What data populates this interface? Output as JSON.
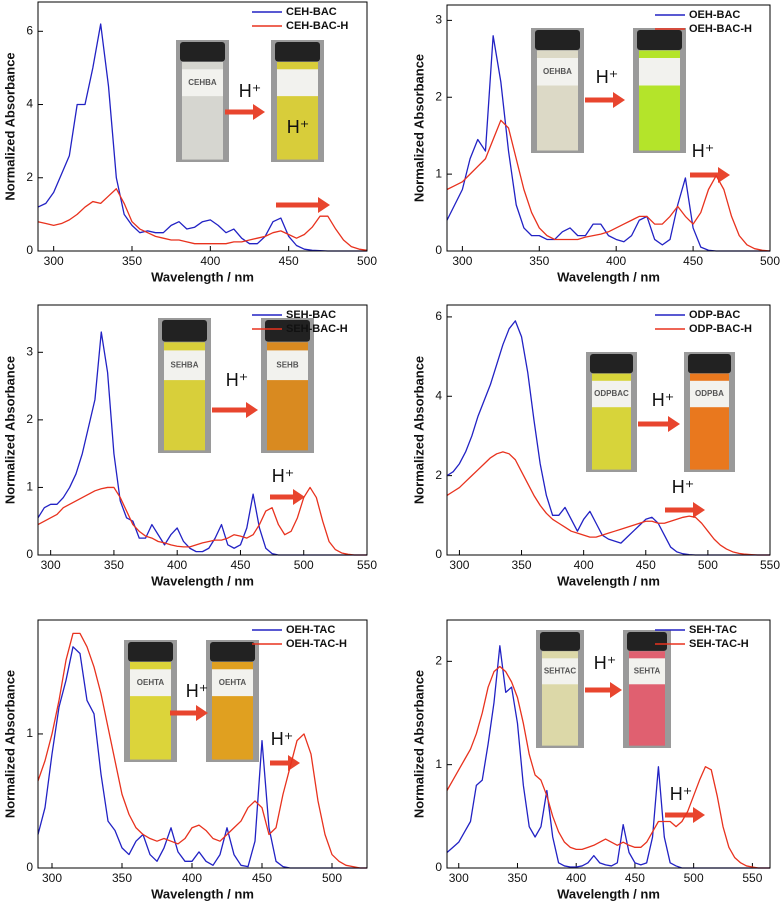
{
  "chart_data": [
    {
      "type": "line",
      "x_label": "Wavelength / nm",
      "y_label": "Normalized Absorbance",
      "legend": "upper right",
      "xlim": [
        290,
        500
      ],
      "xticks": [
        300,
        350,
        400,
        450,
        500
      ],
      "ylim": [
        0,
        6.8
      ],
      "yticks": [
        0,
        2,
        4,
        6
      ],
      "annotations": [
        "H⁺",
        "H⁺"
      ],
      "vial_labels": [
        "CEHBA"
      ],
      "x": [
        290,
        295,
        300,
        305,
        310,
        315,
        320,
        325,
        330,
        335,
        340,
        345,
        350,
        355,
        360,
        365,
        370,
        375,
        380,
        385,
        390,
        395,
        400,
        405,
        410,
        415,
        420,
        425,
        430,
        435,
        440,
        445,
        450,
        455,
        460,
        465,
        470,
        475,
        480,
        485,
        490,
        495,
        500
      ],
      "series": [
        {
          "name": "CEH-BAC",
          "color": "#2222c4",
          "values": [
            1.2,
            1.3,
            1.6,
            2.1,
            2.6,
            4.0,
            4.0,
            5.0,
            6.2,
            4.5,
            2.0,
            1.0,
            0.7,
            0.5,
            0.55,
            0.5,
            0.5,
            0.7,
            0.8,
            0.6,
            0.65,
            0.8,
            0.85,
            0.7,
            0.5,
            0.6,
            0.35,
            0.2,
            0.2,
            0.4,
            0.8,
            0.9,
            0.4,
            0.15,
            0.05,
            0.02,
            0.01,
            0,
            0,
            0,
            0,
            0,
            0
          ]
        },
        {
          "name": "CEH-BAC-H",
          "color": "#e8321e",
          "values": [
            0.8,
            0.75,
            0.7,
            0.75,
            0.85,
            1.0,
            1.2,
            1.35,
            1.3,
            1.5,
            1.7,
            1.3,
            0.8,
            0.6,
            0.5,
            0.4,
            0.35,
            0.3,
            0.3,
            0.25,
            0.2,
            0.2,
            0.2,
            0.2,
            0.2,
            0.25,
            0.25,
            0.3,
            0.35,
            0.4,
            0.5,
            0.55,
            0.45,
            0.35,
            0.45,
            0.65,
            0.95,
            0.95,
            0.6,
            0.3,
            0.12,
            0.05,
            0.02
          ]
        }
      ]
    },
    {
      "type": "line",
      "x_label": "Wavelength / nm",
      "y_label": "Normalized Absorbance",
      "legend": "upper right",
      "xlim": [
        290,
        500
      ],
      "xticks": [
        300,
        350,
        400,
        450,
        500
      ],
      "ylim": [
        0,
        3.2
      ],
      "yticks": [
        0,
        1,
        2,
        3
      ],
      "annotations": [
        "H⁺",
        "H⁺"
      ],
      "vial_labels": [
        "OEHBA"
      ],
      "x": [
        290,
        295,
        300,
        305,
        310,
        315,
        320,
        325,
        330,
        335,
        340,
        345,
        350,
        355,
        360,
        365,
        370,
        375,
        380,
        385,
        390,
        395,
        400,
        405,
        410,
        415,
        420,
        425,
        430,
        435,
        440,
        445,
        450,
        455,
        460,
        465,
        470,
        475,
        480,
        485,
        490,
        495,
        500
      ],
      "series": [
        {
          "name": "OEH-BAC",
          "color": "#2222c4",
          "values": [
            0.4,
            0.6,
            0.8,
            1.2,
            1.45,
            1.3,
            2.8,
            2.2,
            1.3,
            0.6,
            0.3,
            0.2,
            0.2,
            0.15,
            0.15,
            0.25,
            0.3,
            0.2,
            0.2,
            0.35,
            0.35,
            0.2,
            0.15,
            0.12,
            0.2,
            0.4,
            0.45,
            0.15,
            0.08,
            0.15,
            0.6,
            0.95,
            0.3,
            0.05,
            0.01,
            0,
            0,
            0,
            0,
            0,
            0,
            0,
            0
          ]
        },
        {
          "name": "OEH-BAC-H",
          "color": "#e8321e",
          "values": [
            0.8,
            0.85,
            0.9,
            1.0,
            1.1,
            1.2,
            1.45,
            1.7,
            1.6,
            1.2,
            0.8,
            0.5,
            0.3,
            0.2,
            0.15,
            0.15,
            0.15,
            0.15,
            0.18,
            0.2,
            0.22,
            0.25,
            0.3,
            0.35,
            0.4,
            0.45,
            0.45,
            0.35,
            0.35,
            0.45,
            0.58,
            0.45,
            0.35,
            0.5,
            0.8,
            0.98,
            0.8,
            0.45,
            0.2,
            0.08,
            0.03,
            0.01,
            0
          ]
        }
      ]
    },
    {
      "type": "line",
      "x_label": "Wavelength / nm",
      "y_label": "Normalized Absorbance",
      "legend": "upper right",
      "xlim": [
        290,
        550
      ],
      "xticks": [
        300,
        350,
        400,
        450,
        500,
        550
      ],
      "ylim": [
        0,
        3.7
      ],
      "yticks": [
        0,
        1,
        2,
        3
      ],
      "annotations": [
        "H⁺",
        "H⁺"
      ],
      "vial_labels": [
        "SEHBA",
        "SEHB"
      ],
      "x": [
        290,
        295,
        300,
        305,
        310,
        315,
        320,
        325,
        330,
        335,
        340,
        345,
        350,
        355,
        360,
        365,
        370,
        375,
        380,
        385,
        390,
        395,
        400,
        405,
        410,
        415,
        420,
        425,
        430,
        435,
        440,
        445,
        450,
        455,
        460,
        465,
        470,
        475,
        480,
        485,
        490,
        495,
        500,
        505,
        510,
        515,
        520,
        525,
        530,
        535,
        540,
        545,
        550
      ],
      "series": [
        {
          "name": "SEH-BAC",
          "color": "#2222c4",
          "values": [
            0.55,
            0.7,
            0.75,
            0.75,
            0.85,
            1.0,
            1.2,
            1.5,
            1.9,
            2.3,
            3.3,
            2.7,
            1.5,
            0.8,
            0.55,
            0.5,
            0.25,
            0.25,
            0.45,
            0.3,
            0.15,
            0.3,
            0.4,
            0.2,
            0.1,
            0.05,
            0.05,
            0.1,
            0.25,
            0.45,
            0.15,
            0.1,
            0.15,
            0.4,
            0.9,
            0.4,
            0.1,
            0.02,
            0,
            0,
            0,
            0,
            0,
            0,
            0,
            0,
            0,
            0,
            0,
            0,
            0,
            0,
            0
          ]
        },
        {
          "name": "SEH-BAC-H",
          "color": "#e8321e",
          "values": [
            0.45,
            0.5,
            0.55,
            0.6,
            0.7,
            0.75,
            0.8,
            0.85,
            0.9,
            0.95,
            0.98,
            1.0,
            1.0,
            0.85,
            0.65,
            0.45,
            0.35,
            0.28,
            0.25,
            0.2,
            0.18,
            0.15,
            0.13,
            0.12,
            0.12,
            0.15,
            0.18,
            0.2,
            0.22,
            0.22,
            0.25,
            0.3,
            0.28,
            0.25,
            0.3,
            0.45,
            0.65,
            0.7,
            0.45,
            0.3,
            0.35,
            0.55,
            0.85,
            1.0,
            0.85,
            0.5,
            0.2,
            0.08,
            0.03,
            0.01,
            0,
            0,
            0
          ]
        }
      ]
    },
    {
      "type": "line",
      "x_label": "Wavelength / nm",
      "y_label": "Normalized Absorbance",
      "legend": "upper right",
      "xlim": [
        290,
        550
      ],
      "xticks": [
        300,
        350,
        400,
        450,
        500,
        550
      ],
      "ylim": [
        0,
        6.3
      ],
      "yticks": [
        0,
        2,
        4,
        6
      ],
      "annotations": [
        "H⁺",
        "H⁺"
      ],
      "vial_labels": [
        "ODPBAC",
        "ODPBA"
      ],
      "x": [
        290,
        295,
        300,
        305,
        310,
        315,
        320,
        325,
        330,
        335,
        340,
        345,
        350,
        355,
        360,
        365,
        370,
        375,
        380,
        385,
        390,
        395,
        400,
        405,
        410,
        415,
        420,
        425,
        430,
        435,
        440,
        445,
        450,
        455,
        460,
        465,
        470,
        475,
        480,
        485,
        490,
        495,
        500,
        505,
        510,
        515,
        520,
        525,
        530,
        535,
        540,
        545,
        550
      ],
      "series": [
        {
          "name": "ODP-BAC",
          "color": "#2222c4",
          "values": [
            2.0,
            2.1,
            2.3,
            2.6,
            3.0,
            3.5,
            3.9,
            4.3,
            4.8,
            5.3,
            5.7,
            5.9,
            5.5,
            4.6,
            3.4,
            2.3,
            1.5,
            1.0,
            1.0,
            1.2,
            0.9,
            0.6,
            0.9,
            1.1,
            0.8,
            0.5,
            0.4,
            0.35,
            0.3,
            0.45,
            0.6,
            0.75,
            0.9,
            0.95,
            0.8,
            0.5,
            0.2,
            0.08,
            0.03,
            0.01,
            0,
            0,
            0,
            0,
            0,
            0,
            0,
            0,
            0,
            0,
            0,
            0,
            0
          ]
        },
        {
          "name": "ODP-BAC-H",
          "color": "#e8321e",
          "values": [
            1.5,
            1.6,
            1.7,
            1.85,
            2.0,
            2.15,
            2.3,
            2.45,
            2.55,
            2.6,
            2.55,
            2.4,
            2.1,
            1.8,
            1.5,
            1.25,
            1.05,
            0.9,
            0.8,
            0.7,
            0.6,
            0.55,
            0.5,
            0.45,
            0.45,
            0.5,
            0.55,
            0.6,
            0.65,
            0.7,
            0.75,
            0.8,
            0.85,
            0.85,
            0.8,
            0.8,
            0.85,
            0.9,
            0.95,
            0.98,
            0.95,
            0.8,
            0.6,
            0.4,
            0.25,
            0.15,
            0.08,
            0.04,
            0.02,
            0.01,
            0,
            0,
            0
          ]
        }
      ]
    },
    {
      "type": "line",
      "x_label": "Wavelength / nm",
      "y_label": "Normalized Absorbance",
      "legend": "upper right",
      "xlim": [
        290,
        525
      ],
      "xticks": [
        300,
        350,
        400,
        450,
        500
      ],
      "ylim": [
        0,
        1.85
      ],
      "yticks": [
        0,
        1
      ],
      "annotations": [
        "H⁺",
        "H⁺"
      ],
      "vial_labels": [
        "OEHTA",
        "OEHTA"
      ],
      "x": [
        290,
        295,
        300,
        305,
        310,
        315,
        320,
        325,
        330,
        335,
        340,
        345,
        350,
        355,
        360,
        365,
        370,
        375,
        380,
        385,
        390,
        395,
        400,
        405,
        410,
        415,
        420,
        425,
        430,
        435,
        440,
        445,
        450,
        455,
        460,
        465,
        470,
        475,
        480,
        485,
        490,
        495,
        500,
        505,
        510,
        515,
        520,
        525
      ],
      "series": [
        {
          "name": "OEH-TAC",
          "color": "#2222c4",
          "values": [
            0.25,
            0.45,
            0.85,
            1.2,
            1.4,
            1.65,
            1.6,
            1.25,
            1.15,
            0.7,
            0.35,
            0.28,
            0.15,
            0.1,
            0.2,
            0.25,
            0.1,
            0.05,
            0.15,
            0.3,
            0.12,
            0.05,
            0.05,
            0.12,
            0.05,
            0.02,
            0.1,
            0.3,
            0.1,
            0.02,
            0.01,
            0.2,
            0.95,
            0.3,
            0.05,
            0.01,
            0,
            0,
            0,
            0,
            0,
            0,
            0,
            0,
            0,
            0,
            0,
            0
          ]
        },
        {
          "name": "OEH-TAC-H",
          "color": "#e8321e",
          "values": [
            0.65,
            0.8,
            1.0,
            1.25,
            1.55,
            1.75,
            1.75,
            1.65,
            1.5,
            1.3,
            1.05,
            0.8,
            0.55,
            0.4,
            0.3,
            0.25,
            0.22,
            0.2,
            0.22,
            0.2,
            0.18,
            0.22,
            0.3,
            0.32,
            0.28,
            0.22,
            0.2,
            0.25,
            0.3,
            0.35,
            0.45,
            0.5,
            0.45,
            0.25,
            0.3,
            0.55,
            0.75,
            0.95,
            1.0,
            0.85,
            0.5,
            0.25,
            0.1,
            0.05,
            0.02,
            0.01,
            0,
            0
          ]
        }
      ]
    },
    {
      "type": "line",
      "x_label": "Wavelength / nm",
      "y_label": "Normalized Absorbance",
      "legend": "upper right",
      "xlim": [
        290,
        565
      ],
      "xticks": [
        300,
        350,
        400,
        450,
        500,
        550
      ],
      "ylim": [
        0,
        2.4
      ],
      "yticks": [
        0,
        1,
        2
      ],
      "annotations": [
        "H⁺",
        "H⁺"
      ],
      "vial_labels": [
        "SEHTAC",
        "SEHTA"
      ],
      "x": [
        290,
        295,
        300,
        305,
        310,
        315,
        320,
        325,
        330,
        335,
        340,
        345,
        350,
        355,
        360,
        365,
        370,
        375,
        380,
        385,
        390,
        395,
        400,
        405,
        410,
        415,
        420,
        425,
        430,
        435,
        440,
        445,
        450,
        455,
        460,
        465,
        470,
        475,
        480,
        485,
        490,
        495,
        500,
        505,
        510,
        515,
        520,
        525,
        530,
        535,
        540,
        545,
        550,
        555,
        560,
        565
      ],
      "series": [
        {
          "name": "SEH-TAC",
          "color": "#2222c4",
          "values": [
            0.15,
            0.2,
            0.25,
            0.35,
            0.45,
            0.8,
            0.85,
            1.2,
            1.6,
            2.15,
            1.7,
            1.75,
            1.4,
            0.8,
            0.4,
            0.3,
            0.4,
            0.75,
            0.3,
            0.05,
            0.02,
            0.01,
            0.01,
            0.02,
            0.05,
            0.12,
            0.05,
            0.03,
            0.02,
            0.05,
            0.42,
            0.15,
            0.05,
            0.03,
            0.05,
            0.3,
            0.98,
            0.3,
            0.05,
            0.02,
            0,
            0,
            0,
            0,
            0,
            0,
            0,
            0,
            0,
            0,
            0,
            0,
            0,
            0,
            0,
            0
          ]
        },
        {
          "name": "SEH-TAC-H",
          "color": "#e8321e",
          "values": [
            0.75,
            0.85,
            0.95,
            1.05,
            1.15,
            1.3,
            1.5,
            1.75,
            1.9,
            1.95,
            1.9,
            1.8,
            1.65,
            1.4,
            1.1,
            0.9,
            0.85,
            0.7,
            0.5,
            0.35,
            0.25,
            0.2,
            0.18,
            0.18,
            0.2,
            0.22,
            0.25,
            0.28,
            0.25,
            0.22,
            0.25,
            0.22,
            0.2,
            0.2,
            0.25,
            0.35,
            0.45,
            0.45,
            0.45,
            0.4,
            0.45,
            0.55,
            0.7,
            0.85,
            0.98,
            0.95,
            0.7,
            0.4,
            0.2,
            0.1,
            0.05,
            0.02,
            0.01,
            0,
            0,
            0
          ]
        }
      ]
    }
  ]
}
